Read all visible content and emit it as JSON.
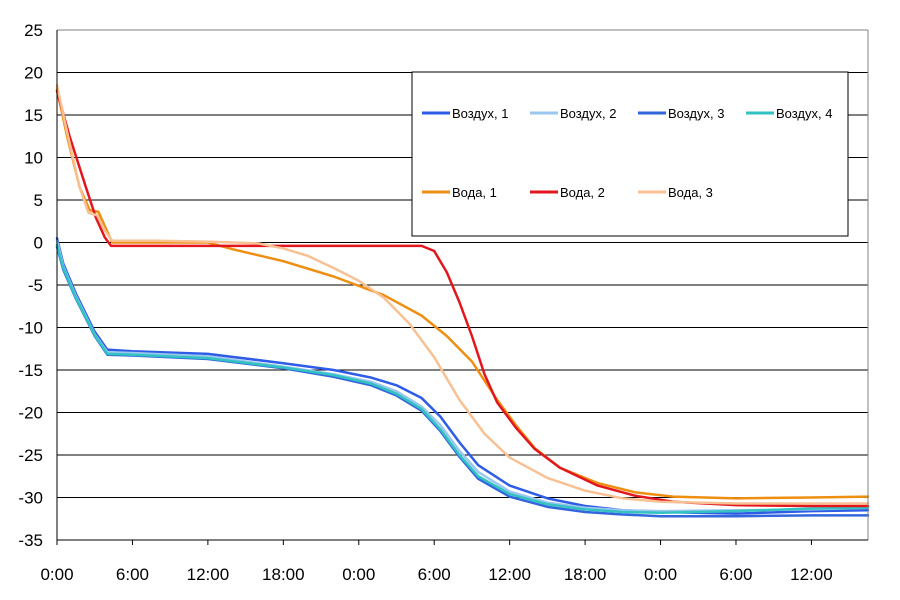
{
  "chart_data": {
    "type": "line",
    "title": "",
    "xlabel": "",
    "ylabel": "",
    "x_unit": "hours from start",
    "xlim": [
      0,
      64.5
    ],
    "ylim": [
      -35,
      25
    ],
    "y_ticks": [
      25,
      20,
      15,
      10,
      5,
      0,
      -5,
      -10,
      -15,
      -20,
      -25,
      -30,
      -35
    ],
    "x_ticks": [
      0,
      6,
      12,
      18,
      24,
      30,
      36,
      42,
      48,
      54,
      60
    ],
    "x_tick_labels": [
      "0:00",
      "6:00",
      "12:00",
      "18:00",
      "0:00",
      "6:00",
      "12:00",
      "18:00",
      "0:00",
      "6:00",
      "12:00"
    ],
    "grid": "horizontal",
    "legend_position": "top-right",
    "series": [
      {
        "name": "Воздух, 1",
        "color": "#2e5ce6",
        "points": [
          [
            0,
            0.5
          ],
          [
            0.5,
            -2.5
          ],
          [
            1.5,
            -6
          ],
          [
            3,
            -10.5
          ],
          [
            4,
            -12.6
          ],
          [
            6,
            -12.8
          ],
          [
            12,
            -13.1
          ],
          [
            18,
            -14.2
          ],
          [
            22,
            -15.0
          ],
          [
            25,
            -15.9
          ],
          [
            27,
            -16.8
          ],
          [
            29,
            -18.3
          ],
          [
            30.5,
            -20.5
          ],
          [
            32,
            -23.5
          ],
          [
            33.5,
            -26.2
          ],
          [
            36,
            -28.6
          ],
          [
            39,
            -30.1
          ],
          [
            42,
            -31.0
          ],
          [
            45,
            -31.5
          ],
          [
            48,
            -31.7
          ],
          [
            54,
            -31.9
          ],
          [
            60,
            -31.6
          ],
          [
            64.5,
            -31.5
          ]
        ]
      },
      {
        "name": "Воздух, 2",
        "color": "#99c7ef",
        "points": [
          [
            0,
            0.2
          ],
          [
            0.5,
            -2.8
          ],
          [
            1.5,
            -6.3
          ],
          [
            3,
            -10.8
          ],
          [
            4,
            -12.9
          ],
          [
            6,
            -13.0
          ],
          [
            12,
            -13.4
          ],
          [
            18,
            -14.6
          ],
          [
            22,
            -15.5
          ],
          [
            25,
            -16.4
          ],
          [
            27,
            -17.5
          ],
          [
            29,
            -19.3
          ],
          [
            30.5,
            -21.5
          ],
          [
            32,
            -24.5
          ],
          [
            33.5,
            -27.0
          ],
          [
            36,
            -29.3
          ],
          [
            39,
            -30.6
          ],
          [
            42,
            -31.2
          ],
          [
            45,
            -31.5
          ],
          [
            48,
            -31.6
          ],
          [
            54,
            -31.5
          ],
          [
            60,
            -31.4
          ],
          [
            64.5,
            -31.2
          ]
        ]
      },
      {
        "name": "Воздух, 3",
        "color": "#3366dd",
        "points": [
          [
            0,
            -0.5
          ],
          [
            0.5,
            -3.2
          ],
          [
            1.5,
            -6.6
          ],
          [
            3,
            -11
          ],
          [
            4,
            -13.2
          ],
          [
            6,
            -13.3
          ],
          [
            12,
            -13.7
          ],
          [
            18,
            -14.8
          ],
          [
            22,
            -15.8
          ],
          [
            25,
            -16.8
          ],
          [
            27,
            -18.0
          ],
          [
            29,
            -19.8
          ],
          [
            30.5,
            -22.2
          ],
          [
            32,
            -25.2
          ],
          [
            33.5,
            -27.8
          ],
          [
            36,
            -29.9
          ],
          [
            39,
            -31.1
          ],
          [
            42,
            -31.7
          ],
          [
            45,
            -32.0
          ],
          [
            48,
            -32.2
          ],
          [
            54,
            -32.2
          ],
          [
            60,
            -32.1
          ],
          [
            64.5,
            -32.1
          ]
        ]
      },
      {
        "name": "Воздух, 4",
        "color": "#33c2c2",
        "points": [
          [
            0,
            -0.3
          ],
          [
            0.5,
            -3.0
          ],
          [
            1.5,
            -6.5
          ],
          [
            3,
            -10.9
          ],
          [
            4,
            -13.1
          ],
          [
            6,
            -13.2
          ],
          [
            12,
            -13.6
          ],
          [
            18,
            -14.7
          ],
          [
            22,
            -15.6
          ],
          [
            25,
            -16.6
          ],
          [
            27,
            -17.8
          ],
          [
            29,
            -19.6
          ],
          [
            30.5,
            -22.0
          ],
          [
            32,
            -25.0
          ],
          [
            33.5,
            -27.5
          ],
          [
            36,
            -29.6
          ],
          [
            39,
            -30.8
          ],
          [
            42,
            -31.4
          ],
          [
            45,
            -31.7
          ],
          [
            48,
            -31.8
          ],
          [
            54,
            -31.6
          ],
          [
            60,
            -31.3
          ],
          [
            64.5,
            -31.2
          ]
        ]
      },
      {
        "name": "Вода, 1",
        "color": "#ee8f12",
        "points": [
          [
            0,
            18
          ],
          [
            0.8,
            12.5
          ],
          [
            1.8,
            6.5
          ],
          [
            2.6,
            3.8
          ],
          [
            3.3,
            3.6
          ],
          [
            3.9,
            1.6
          ],
          [
            4.4,
            0
          ],
          [
            6,
            0
          ],
          [
            10,
            0
          ],
          [
            12,
            0
          ],
          [
            14,
            -0.8
          ],
          [
            18,
            -2.2
          ],
          [
            22,
            -4.0
          ],
          [
            26,
            -6.2
          ],
          [
            29,
            -8.6
          ],
          [
            31,
            -11.0
          ],
          [
            33,
            -14.0
          ],
          [
            35,
            -18.5
          ],
          [
            36.5,
            -21.5
          ],
          [
            38,
            -24.2
          ],
          [
            40,
            -26.5
          ],
          [
            43,
            -28.3
          ],
          [
            46,
            -29.4
          ],
          [
            49,
            -29.9
          ],
          [
            54,
            -30.1
          ],
          [
            60,
            -30.0
          ],
          [
            64.5,
            -29.9
          ]
        ]
      },
      {
        "name": "Вода, 2",
        "color": "#e3161e",
        "points": [
          [
            0,
            17.8
          ],
          [
            1,
            12.5
          ],
          [
            2.3,
            6.5
          ],
          [
            3.1,
            2.9
          ],
          [
            3.8,
            0.6
          ],
          [
            4.3,
            -0.4
          ],
          [
            8,
            -0.4
          ],
          [
            14,
            -0.4
          ],
          [
            20,
            -0.4
          ],
          [
            26,
            -0.4
          ],
          [
            29,
            -0.4
          ],
          [
            30,
            -1.0
          ],
          [
            31,
            -3.5
          ],
          [
            32,
            -7.0
          ],
          [
            33,
            -11.0
          ],
          [
            34,
            -15.5
          ],
          [
            35,
            -18.8
          ],
          [
            36.5,
            -21.8
          ],
          [
            38,
            -24.3
          ],
          [
            40,
            -26.5
          ],
          [
            43,
            -28.6
          ],
          [
            46,
            -29.8
          ],
          [
            49,
            -30.5
          ],
          [
            54,
            -30.9
          ],
          [
            60,
            -31.0
          ],
          [
            64.5,
            -31.0
          ]
        ]
      },
      {
        "name": "Вода, 3",
        "color": "#f8c194",
        "points": [
          [
            0,
            18.5
          ],
          [
            0.8,
            13
          ],
          [
            1.8,
            6.5
          ],
          [
            2.5,
            3.5
          ],
          [
            3.2,
            3.2
          ],
          [
            3.8,
            1.4
          ],
          [
            4.4,
            0.2
          ],
          [
            8,
            0.2
          ],
          [
            12,
            0.1
          ],
          [
            16,
            -0.1
          ],
          [
            18,
            -0.7
          ],
          [
            20,
            -1.6
          ],
          [
            22,
            -3.0
          ],
          [
            24,
            -4.5
          ],
          [
            26,
            -6.5
          ],
          [
            28,
            -9.5
          ],
          [
            30,
            -13.5
          ],
          [
            32,
            -18.5
          ],
          [
            34,
            -22.5
          ],
          [
            36,
            -25.3
          ],
          [
            39,
            -27.7
          ],
          [
            42,
            -29.2
          ],
          [
            45,
            -30.1
          ],
          [
            48,
            -30.5
          ],
          [
            54,
            -30.7
          ],
          [
            60,
            -30.7
          ],
          [
            64.5,
            -30.7
          ]
        ]
      }
    ]
  }
}
